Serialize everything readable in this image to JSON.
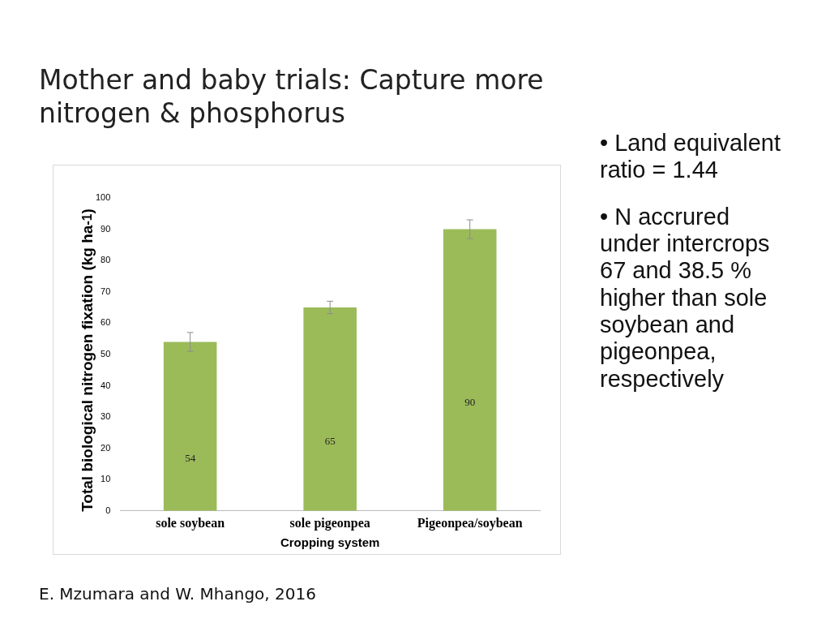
{
  "chart_data": {
    "type": "bar",
    "title": "Mother and baby trials: Capture more nitrogen & phosphorus",
    "xlabel": "Cropping system",
    "ylabel": "Total  biological nitrogen fixation (kg ha$^{-1}$)",
    "categories": [
      "sole soybean",
      "sole pigeonpea",
      "Pigeonpea/soybean"
    ],
    "values": [
      54,
      65,
      90
    ],
    "errors": [
      3,
      2,
      3
    ],
    "color": "#9bbb59",
    "ylim": [
      0,
      100
    ],
    "yticks": [
      0,
      10,
      20,
      30,
      40,
      50,
      60,
      70,
      80,
      90,
      100
    ],
    "grid": false,
    "data_labels": true,
    "legend": false,
    "annotations": [
      "• Land equivalent ratio = 1.44",
      "• N accrured under intercrops 67 and 38.5 % higher than sole soybean and pigeonpea, respectively",
      "E. Mzumara and W. Mhango, 2016"
    ]
  }
}
